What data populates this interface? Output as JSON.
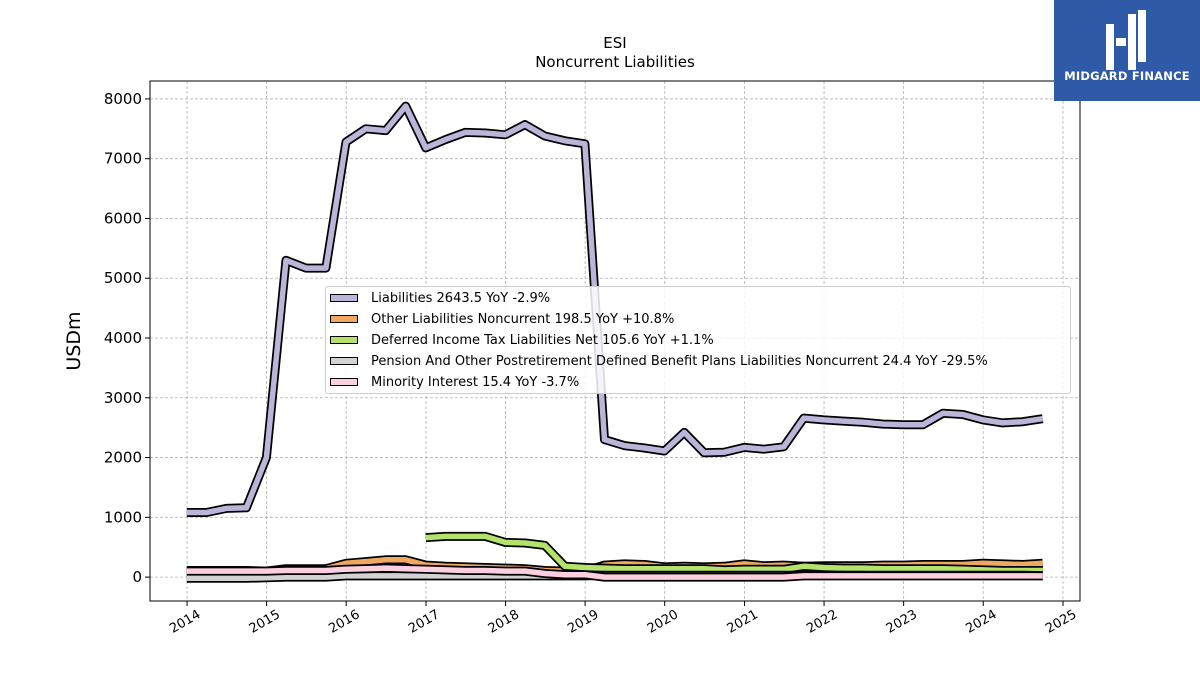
{
  "chart_data": {
    "type": "line",
    "title": "ESI",
    "subtitle": "Noncurrent  Liabilities",
    "ylabel": "USDm",
    "xlabel": "",
    "ylim": [
      -400,
      8300
    ],
    "xlim": [
      "2013-07-15",
      "2025-03-20"
    ],
    "yticks": [
      0,
      1000,
      2000,
      3000,
      4000,
      5000,
      6000,
      7000,
      8000
    ],
    "xticks": [
      "2014",
      "2015",
      "2016",
      "2017",
      "2018",
      "2019",
      "2020",
      "2021",
      "2022",
      "2023",
      "2024",
      "2025"
    ],
    "grid": true,
    "legend_position": "center",
    "series": [
      {
        "name": "Liabilities",
        "legend_label": "Liabilities  2643.5 YoY -2.9%",
        "color": "#b9b6d9",
        "x": [
          "2013-12-31",
          "2014-03-31",
          "2014-06-30",
          "2014-09-30",
          "2014-12-31",
          "2015-03-31",
          "2015-06-30",
          "2015-09-30",
          "2015-12-31",
          "2016-03-31",
          "2016-06-30",
          "2016-09-30",
          "2016-12-31",
          "2017-03-31",
          "2017-06-30",
          "2017-09-30",
          "2017-12-31",
          "2018-03-31",
          "2018-06-30",
          "2018-09-30",
          "2018-12-31",
          "2019-03-31",
          "2019-06-30",
          "2019-09-30",
          "2019-12-31",
          "2020-03-31",
          "2020-06-30",
          "2020-09-30",
          "2020-12-31",
          "2021-03-31",
          "2021-06-30",
          "2021-09-30",
          "2021-12-31",
          "2022-03-31",
          "2022-06-30",
          "2022-09-30",
          "2022-12-31",
          "2023-03-31",
          "2023-06-30",
          "2023-09-30",
          "2023-12-31",
          "2024-03-31",
          "2024-06-30",
          "2024-09-30"
        ],
        "values": [
          1080,
          1080,
          1150,
          1160,
          2000,
          5300,
          5170,
          5170,
          7280,
          7500,
          7470,
          7880,
          7180,
          7320,
          7440,
          7430,
          7400,
          7570,
          7380,
          7300,
          7250,
          2300,
          2200,
          2160,
          2110,
          2420,
          2080,
          2090,
          2170,
          2140,
          2180,
          2660,
          2630,
          2610,
          2590,
          2560,
          2550,
          2550,
          2740,
          2720,
          2630,
          2580,
          2600,
          2650
        ]
      },
      {
        "name": "Other Liabilities Noncurrent",
        "legend_label": "Other Liabilities Noncurrent  198.5 YoY +10.8%",
        "color": "#f0a860",
        "x": [
          "2013-12-31",
          "2014-03-31",
          "2014-06-30",
          "2014-09-30",
          "2014-12-31",
          "2015-03-31",
          "2015-06-30",
          "2015-09-30",
          "2015-12-31",
          "2016-03-31",
          "2016-06-30",
          "2016-09-30",
          "2016-12-31",
          "2017-03-31",
          "2017-06-30",
          "2017-09-30",
          "2017-12-31",
          "2018-03-31",
          "2018-06-30",
          "2018-09-30",
          "2018-12-31",
          "2019-03-31",
          "2019-06-30",
          "2019-09-30",
          "2019-12-31",
          "2020-03-31",
          "2020-06-30",
          "2020-09-30",
          "2020-12-31",
          "2021-03-31",
          "2021-06-30",
          "2021-09-30",
          "2021-12-31",
          "2022-03-31",
          "2022-06-30",
          "2022-09-30",
          "2022-12-31",
          "2023-03-31",
          "2023-06-30",
          "2023-09-30",
          "2023-12-31",
          "2024-03-31",
          "2024-06-30",
          "2024-09-30"
        ],
        "values": [
          110,
          110,
          110,
          110,
          100,
          140,
          140,
          140,
          230,
          260,
          290,
          290,
          200,
          180,
          170,
          160,
          150,
          140,
          110,
          100,
          100,
          200,
          220,
          210,
          170,
          180,
          170,
          180,
          220,
          190,
          200,
          180,
          190,
          190,
          190,
          200,
          200,
          210,
          210,
          210,
          230,
          220,
          210,
          230
        ]
      },
      {
        "name": "Deferred Income Tax Liabilities Net",
        "legend_label": "Deferred Income Tax Liabilities Net  105.6 YoY +1.1%",
        "color": "#b5e26a",
        "x": [
          "2016-12-31",
          "2017-03-31",
          "2017-06-30",
          "2017-09-30",
          "2017-12-31",
          "2018-03-31",
          "2018-06-30",
          "2018-09-30",
          "2018-12-31",
          "2019-03-31",
          "2019-06-30",
          "2019-09-30",
          "2019-12-31",
          "2020-03-31",
          "2020-06-30",
          "2020-09-30",
          "2020-12-31",
          "2021-03-31",
          "2021-06-30",
          "2021-09-30",
          "2021-12-31",
          "2022-03-31",
          "2022-06-30",
          "2022-09-30",
          "2022-12-31",
          "2023-03-31",
          "2023-06-30",
          "2023-09-30",
          "2023-12-31",
          "2024-03-31",
          "2024-06-30",
          "2024-09-30"
        ],
        "values": [
          660,
          680,
          680,
          680,
          580,
          570,
          530,
          180,
          160,
          150,
          140,
          140,
          140,
          140,
          140,
          120,
          130,
          130,
          130,
          180,
          160,
          150,
          150,
          140,
          140,
          140,
          140,
          130,
          120,
          110,
          110,
          110
        ]
      },
      {
        "name": "Pension And Other Postretirement Defined Benefit Plans Liabilities Noncurrent",
        "legend_label": "Pension And Other Postretirement Defined Benefit Plans Liabilities Noncurrent  24.4 YoY -29.5%",
        "color": "#d3d3d3",
        "x": [
          "2013-12-31",
          "2014-03-31",
          "2014-06-30",
          "2014-09-30",
          "2014-12-31",
          "2015-03-31",
          "2015-06-30",
          "2015-09-30",
          "2015-12-31",
          "2016-03-31",
          "2016-06-30",
          "2016-09-30",
          "2016-12-31",
          "2017-03-31",
          "2017-06-30",
          "2017-09-30",
          "2017-12-31",
          "2018-03-31",
          "2018-06-30",
          "2018-09-30",
          "2018-12-31",
          "2019-03-31",
          "2019-06-30",
          "2019-09-30",
          "2019-12-31",
          "2020-03-31",
          "2020-06-30",
          "2020-09-30",
          "2020-12-31",
          "2021-03-31",
          "2021-06-30",
          "2021-09-30",
          "2021-12-31",
          "2022-03-31",
          "2022-06-30",
          "2022-09-30",
          "2022-12-31",
          "2023-03-31",
          "2023-06-30",
          "2023-09-30",
          "2023-12-31",
          "2024-03-31",
          "2024-06-30",
          "2024-09-30"
        ],
        "values": [
          -20,
          -20,
          -20,
          -20,
          -10,
          0,
          0,
          0,
          20,
          20,
          20,
          20,
          20,
          20,
          20,
          20,
          20,
          20,
          20,
          20,
          20,
          30,
          30,
          30,
          30,
          30,
          30,
          30,
          30,
          30,
          30,
          30,
          30,
          30,
          30,
          30,
          30,
          30,
          30,
          30,
          30,
          30,
          30,
          25
        ]
      },
      {
        "name": "Minority Interest",
        "legend_label": "Minority Interest  15.4 YoY -3.7%",
        "color": "#fbcfe0",
        "x": [
          "2013-12-31",
          "2014-03-31",
          "2014-06-30",
          "2014-09-30",
          "2014-12-31",
          "2015-03-31",
          "2015-06-30",
          "2015-09-30",
          "2015-12-31",
          "2016-03-31",
          "2016-06-30",
          "2016-09-30",
          "2016-12-31",
          "2017-03-31",
          "2017-06-30",
          "2017-09-30",
          "2017-12-31",
          "2018-03-31",
          "2018-06-30",
          "2018-09-30",
          "2018-12-31",
          "2019-03-31",
          "2019-06-30",
          "2019-09-30",
          "2019-12-31",
          "2020-03-31",
          "2020-06-30",
          "2020-09-30",
          "2020-12-31",
          "2021-03-31",
          "2021-06-30",
          "2021-09-30",
          "2021-12-31",
          "2022-03-31",
          "2022-06-30",
          "2022-09-30",
          "2022-12-31",
          "2023-03-31",
          "2023-06-30",
          "2023-09-30",
          "2023-12-31",
          "2024-03-31",
          "2024-06-30",
          "2024-09-30"
        ],
        "values": [
          100,
          100,
          100,
          100,
          100,
          110,
          110,
          110,
          130,
          140,
          150,
          140,
          130,
          120,
          110,
          110,
          100,
          100,
          60,
          40,
          40,
          0,
          0,
          0,
          0,
          0,
          0,
          0,
          0,
          0,
          0,
          20,
          20,
          20,
          20,
          20,
          20,
          20,
          20,
          20,
          20,
          20,
          20,
          20
        ]
      }
    ]
  },
  "logo": {
    "text": "MIDGARD FINANCE"
  }
}
